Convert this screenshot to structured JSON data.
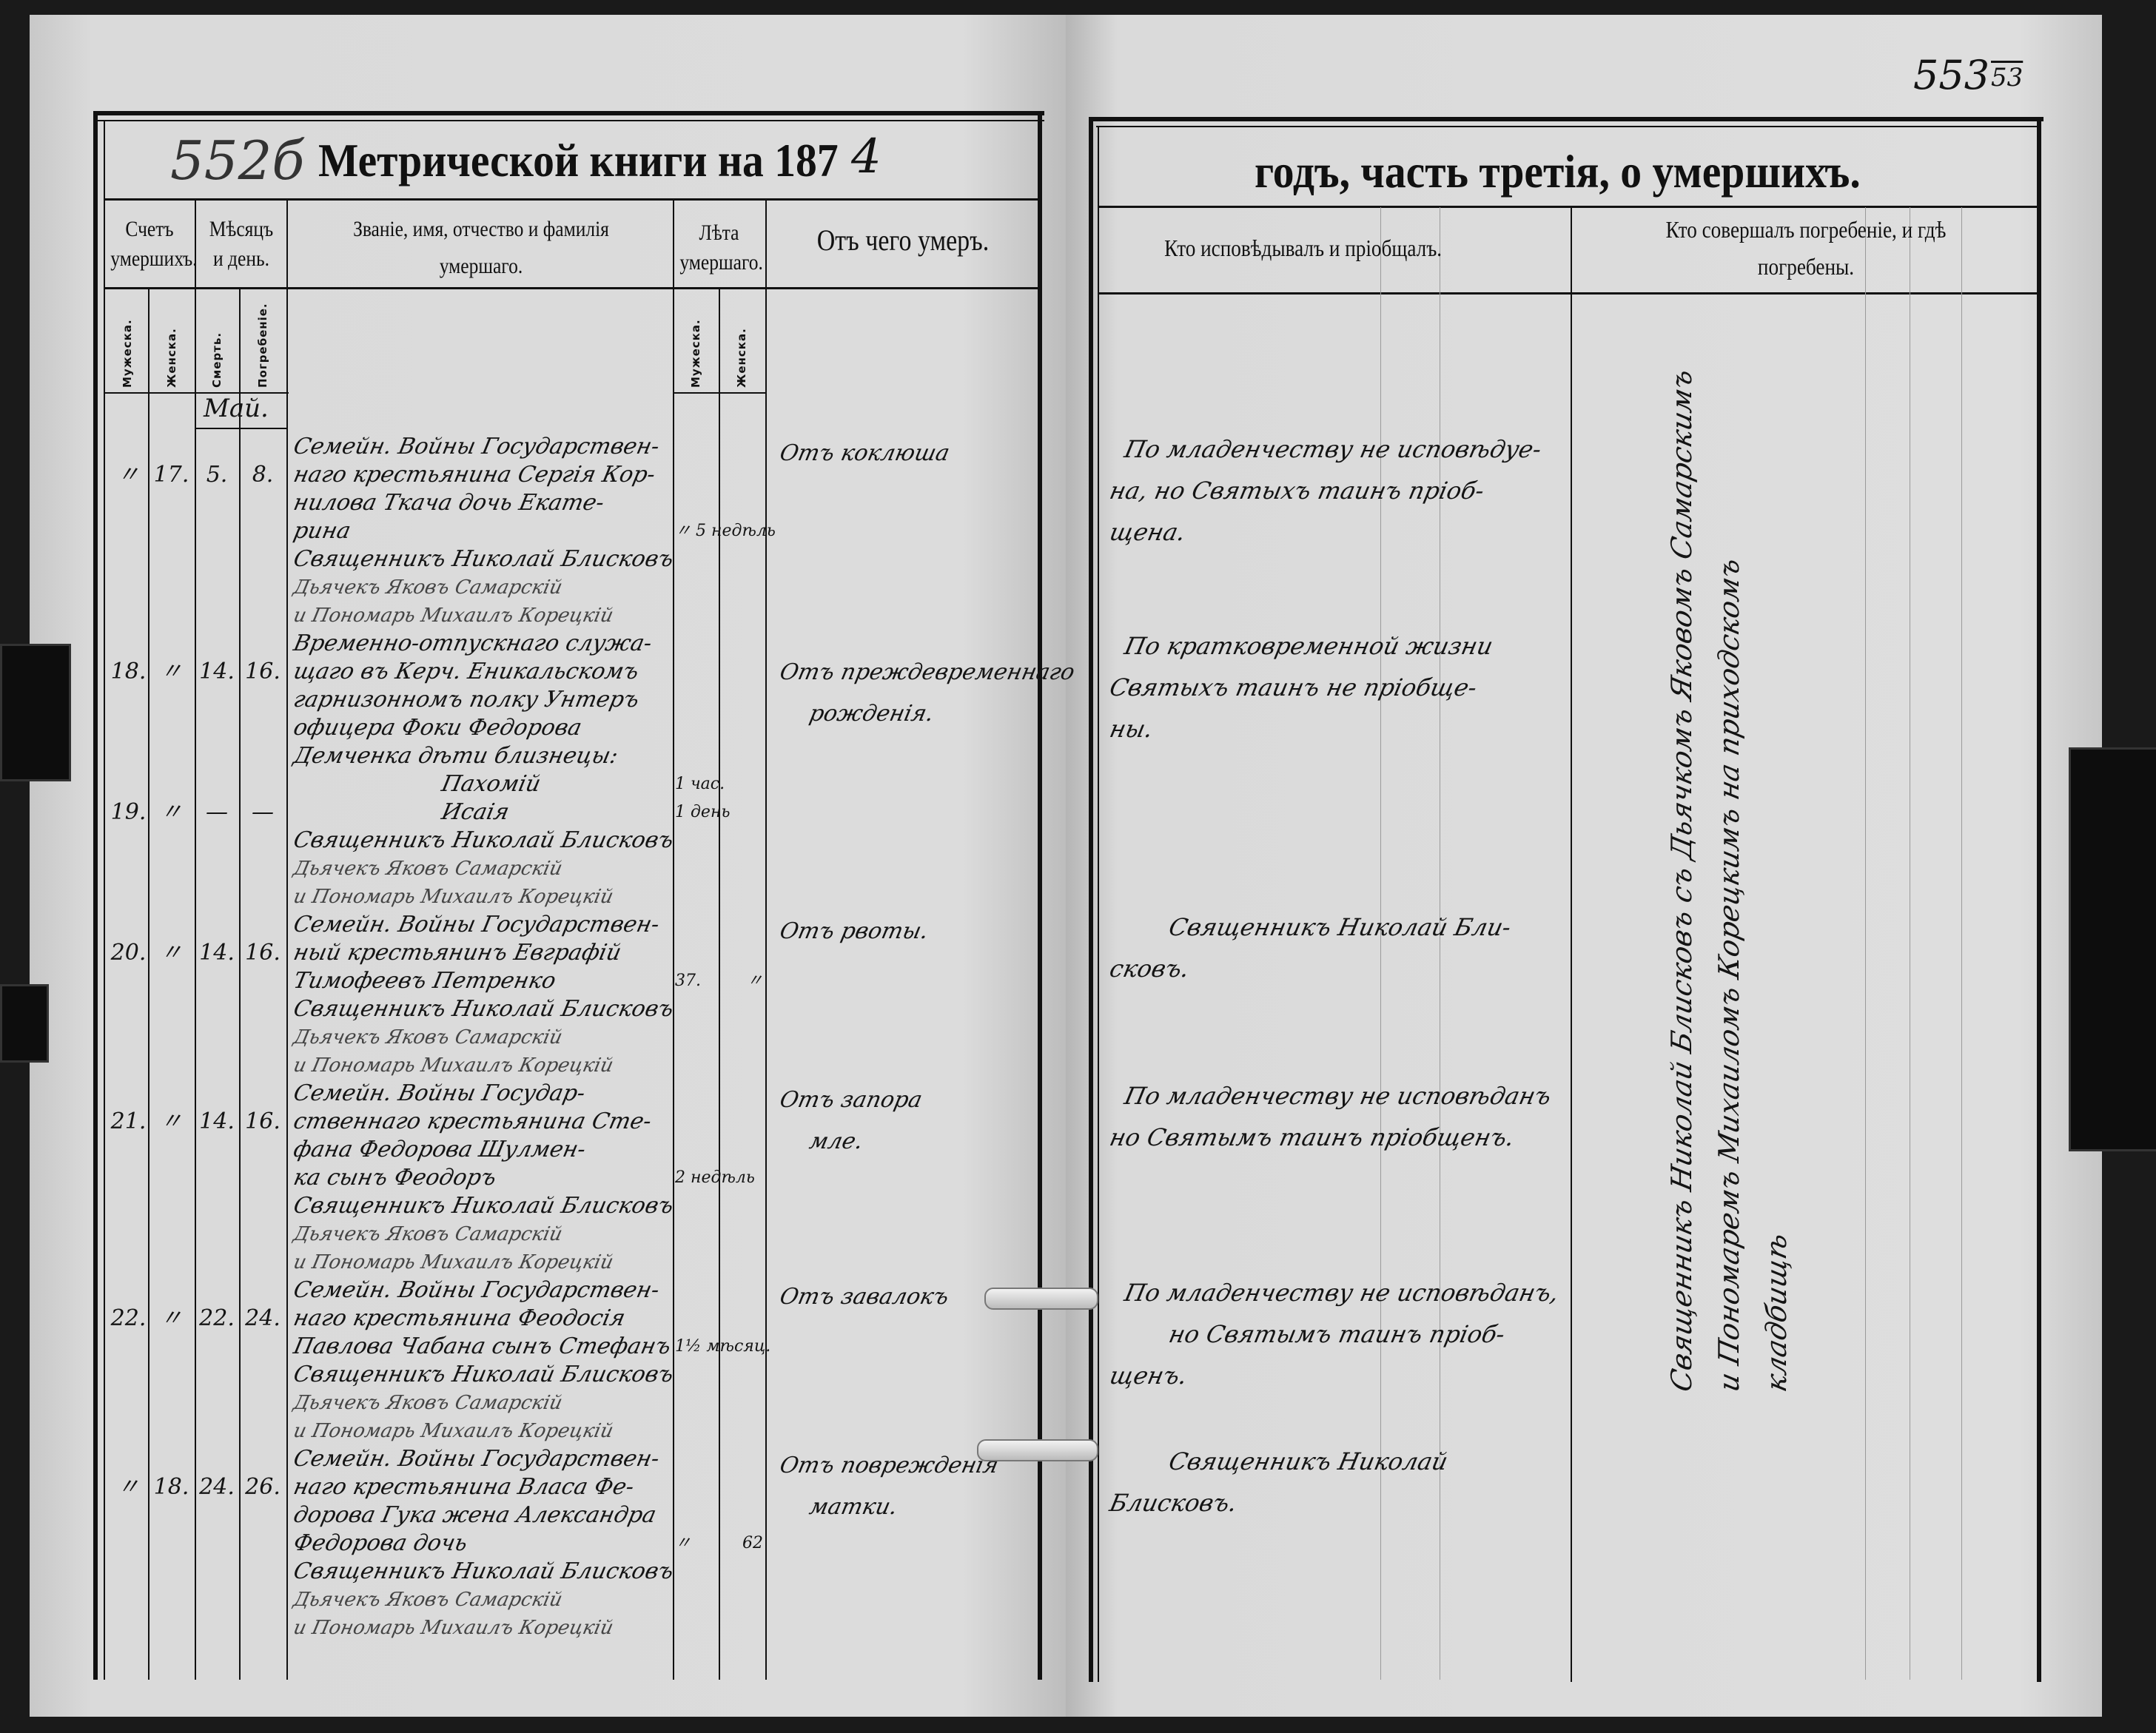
{
  "left_page": {
    "page_number": "552б",
    "title": "Метрической книги на 187",
    "title_year_digit": "4",
    "headers": {
      "count": "Счетъ умершихъ.",
      "month_day": "Мѣсяцъ и день.",
      "name": "Званіе, имя, отчество и фамилія умершаго.",
      "age": "Лѣта умершаго.",
      "cause": "Отъ чего умеръ."
    },
    "subheaders": {
      "male": "Мужеска.",
      "female": "Женска.",
      "death": "Смерть.",
      "burial": "Погребеніе.",
      "age_male": "Мужеска.",
      "age_female": "Женска."
    },
    "month": "Май.",
    "entries": [
      {
        "male": "〃",
        "female": "17.",
        "death": "5.",
        "burial": "8.",
        "lines": [
          "Семейн. Войны Государствен-",
          "наго крестьянина Сергія Кор-",
          "нилова Ткача дочь Екате-",
          "рина",
          "Священникъ Николай Блисковъ",
          "Дьячекъ Яковъ Самарскій",
          "и Пономарь Михаилъ Корецкій"
        ],
        "age_male": "〃",
        "age_female": "5 недѣль",
        "cause": [
          "Отъ коклюша"
        ]
      },
      {
        "male": "18.",
        "female": "〃",
        "death": "14.",
        "burial": "16.",
        "lines": [
          "Временно-отпускнаго служа-",
          "щаго въ Керч. Еникальскомъ",
          "гарнизонномъ полку Унтеръ",
          "офицера Фоки Федорова",
          "Демченка дѣти близнецы:",
          "Пахомій"
        ],
        "age_male": "1 час.",
        "age_female": "",
        "cause": [
          "Отъ преждевременнаго",
          "рожденія."
        ]
      },
      {
        "male": "19.",
        "female": "〃",
        "death": "—",
        "burial": "—",
        "lines": [
          "Исаія",
          "Священникъ Николай Блисковъ",
          "Дьячекъ Яковъ Самарскій",
          "и Пономарь Михаилъ Корецкій"
        ],
        "age_male": "1 день",
        "age_female": "",
        "cause": []
      },
      {
        "male": "20.",
        "female": "〃",
        "death": "14.",
        "burial": "16.",
        "lines": [
          "Семейн. Войны Государствен-",
          "ный крестьянинъ Евграфій",
          "Тимофеевъ Петренко",
          "Священникъ Николай Блисковъ",
          "Дьячекъ Яковъ Самарскій",
          "и Пономарь Михаилъ Корецкій"
        ],
        "age_male": "37.",
        "age_female": "〃",
        "cause": [
          "Отъ рвоты."
        ]
      },
      {
        "male": "21.",
        "female": "〃",
        "death": "14.",
        "burial": "16.",
        "lines": [
          "Семейн. Войны Государ-",
          "ственнаго крестьянина Сте-",
          "фана Федорова Шулмен-",
          "ка сынъ Феодоръ",
          "Священникъ Николай Блисковъ",
          "Дьячекъ Яковъ Самарскій",
          "и Пономарь Михаилъ Корецкій"
        ],
        "age_male": "2 недѣль",
        "age_female": "",
        "cause": [
          "Отъ запора",
          "мле."
        ]
      },
      {
        "male": "22.",
        "female": "〃",
        "death": "22.",
        "burial": "24.",
        "lines": [
          "Семейн. Войны Государствен-",
          "наго крестьянина Феодосія",
          "Павлова Чабана сынъ Стефанъ",
          "Священникъ Николай Блисковъ",
          "Дьячекъ Яковъ Самарскій",
          "и Пономарь Михаилъ Корецкій"
        ],
        "age_male": "1½ мѣсяц.",
        "age_female": "",
        "cause": [
          "Отъ завалокъ"
        ]
      },
      {
        "male": "〃",
        "female": "18.",
        "death": "24.",
        "burial": "26.",
        "lines": [
          "Семейн. Войны Государствен-",
          "наго крестьянина Власа Фе-",
          "дорова Гука жена Александра",
          "Федорова дочь",
          "Священникъ Николай Блисковъ",
          "Дьячекъ Яковъ Самарскій",
          "и Пономарь Михаилъ Корецкій"
        ],
        "age_male": "〃",
        "age_female": "62",
        "cause": [
          "Отъ поврежденія",
          "матки."
        ]
      }
    ]
  },
  "right_page": {
    "page_number": "553",
    "page_number_alt": "53",
    "title": "годъ, часть третія, о умершихъ.",
    "headers": {
      "confession": "Кто исповѣдывалъ и пріобщалъ.",
      "burial_line1": "Кто совершалъ погребеніе, и гдѣ",
      "burial_line2": "погребены."
    },
    "confession_entries": [
      [
        "По младенчеству не исповѣдуе-",
        "на, но Святыхъ таинъ пріоб-",
        "щена."
      ],
      [
        "По кратковременной жизни",
        "Святыхъ таинъ не пріобще-",
        "ны."
      ],
      [
        "Священникъ Николай Бли-",
        "сковъ."
      ],
      [
        "По младенчеству не исповѣданъ",
        "но Святымъ таинъ пріобщенъ."
      ],
      [
        "По младенчеству не исповѣданъ,",
        "но Святымъ таинъ пріоб-",
        "щенъ."
      ],
      [
        "Священникъ Николай",
        "Блисковъ."
      ]
    ],
    "burial_note": [
      "Священникъ Николай Блисковъ съ Дьячкомъ Яковомъ Самарскимъ",
      "и Пономаремъ Михаиломъ Корецкимъ на приходскомъ",
      "кладбищѣ"
    ]
  },
  "colors": {
    "paper": "#d9d9d9",
    "ink": "#111111",
    "background": "#1a1a1a"
  }
}
